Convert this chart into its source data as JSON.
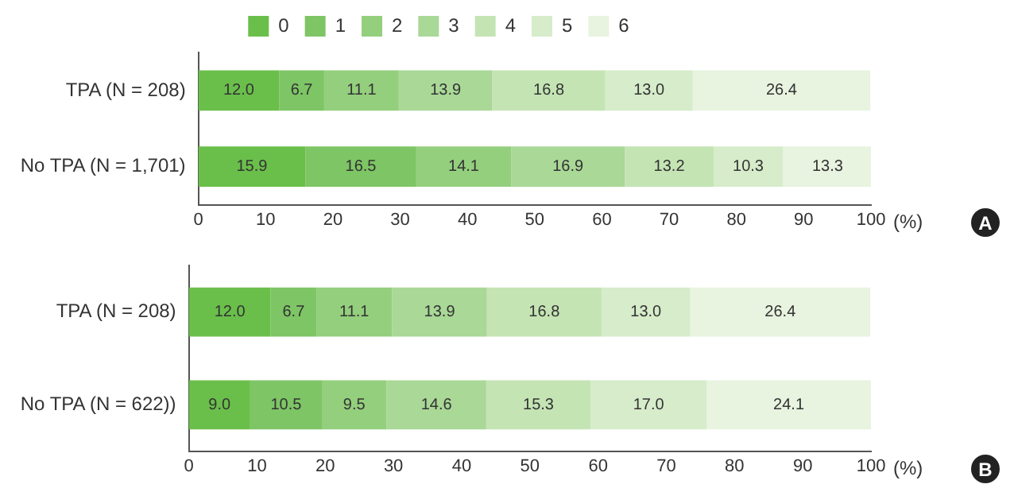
{
  "chart_data": [
    {
      "type": "bar",
      "orientation": "horizontal",
      "stacked": true,
      "categories": [
        "TPA (N = 208)",
        "No TPA (N = 1,701)"
      ],
      "xlabel": "(%)",
      "annotations": [
        "A"
      ],
      "xlim": [
        0,
        100
      ],
      "xticks": [
        0,
        10,
        20,
        30,
        40,
        50,
        60,
        70,
        80,
        90,
        100
      ],
      "grid": false,
      "legend": "top",
      "series": [
        {
          "name": "0",
          "color": "#6abf4b",
          "values": [
            12.0,
            15.9
          ],
          "value_labels": [
            "12.0",
            "15.9"
          ]
        },
        {
          "name": "1",
          "color": "#7ec565",
          "values": [
            6.7,
            16.5
          ],
          "value_labels": [
            "6.7",
            "16.5"
          ]
        },
        {
          "name": "2",
          "color": "#94cf7d",
          "values": [
            11.1,
            14.1
          ],
          "value_labels": [
            "11.1",
            "14.1"
          ]
        },
        {
          "name": "3",
          "color": "#a9d897",
          "values": [
            13.9,
            16.9
          ],
          "value_labels": [
            "13.9",
            "16.9"
          ]
        },
        {
          "name": "4",
          "color": "#c4e4b4",
          "values": [
            16.8,
            13.2
          ],
          "value_labels": [
            "16.8",
            "13.2"
          ]
        },
        {
          "name": "5",
          "color": "#d6ecca",
          "values": [
            13.0,
            10.3
          ],
          "value_labels": [
            "13.0",
            "10.3"
          ]
        },
        {
          "name": "6",
          "color": "#e8f3e0",
          "values": [
            26.4,
            13.3
          ],
          "value_labels": [
            "26.4",
            "13.3"
          ]
        }
      ]
    },
    {
      "type": "bar",
      "orientation": "horizontal",
      "stacked": true,
      "categories": [
        "TPA (N = 208)",
        "No TPA (N = 622))"
      ],
      "xlabel": "(%)",
      "annotations": [
        "B"
      ],
      "xlim": [
        0,
        100
      ],
      "xticks": [
        0,
        10,
        20,
        30,
        40,
        50,
        60,
        70,
        80,
        90,
        100
      ],
      "grid": false,
      "series": [
        {
          "color": "#6abf4b",
          "values": [
            12.0,
            9.0
          ],
          "value_labels": [
            "12.0",
            "9.0"
          ]
        },
        {
          "color": "#7ec565",
          "values": [
            6.7,
            10.5
          ],
          "value_labels": [
            "6.7",
            "10.5"
          ]
        },
        {
          "color": "#94cf7d",
          "values": [
            11.1,
            9.5
          ],
          "value_labels": [
            "11.1",
            "9.5"
          ]
        },
        {
          "color": "#a9d897",
          "values": [
            13.9,
            14.6
          ],
          "value_labels": [
            "13.9",
            "14.6"
          ]
        },
        {
          "color": "#c4e4b4",
          "values": [
            16.8,
            15.3
          ],
          "value_labels": [
            "16.8",
            "15.3"
          ]
        },
        {
          "color": "#d6ecca",
          "values": [
            13.0,
            17.0
          ],
          "value_labels": [
            "13.0",
            "17.0"
          ]
        },
        {
          "color": "#e8f3e0",
          "values": [
            26.4,
            24.1
          ],
          "value_labels": [
            "26.4",
            "24.1"
          ]
        }
      ]
    }
  ]
}
